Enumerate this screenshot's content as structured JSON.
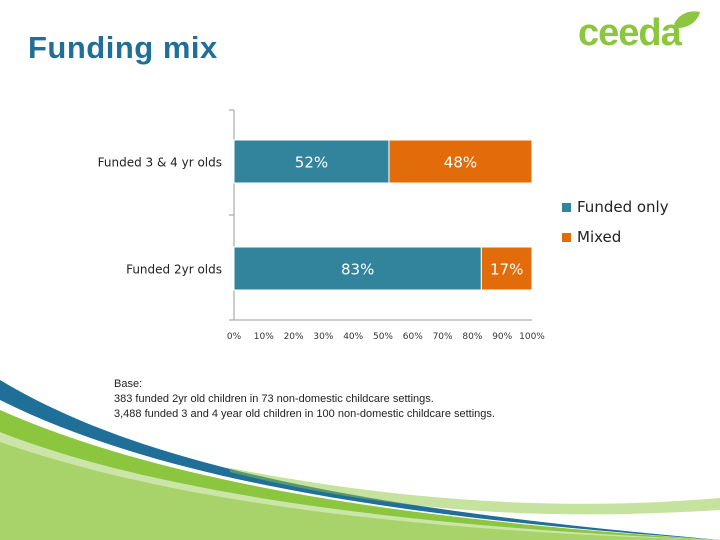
{
  "page": {
    "title": "Funding mix",
    "logo_text": "ceeda",
    "base_note": {
      "heading": "Base:",
      "line1": "383 funded 2yr old children in 73 non-domestic childcare settings.",
      "line2": "3,488 funded 3 and 4 year old children in 100 non-domestic childcare settings."
    }
  },
  "colors": {
    "title": "#1f6f99",
    "funded_only": "#31849b",
    "mixed": "#e36c0a",
    "brand_green": "#8cc63f"
  },
  "chart_data": {
    "type": "bar",
    "orientation": "horizontal",
    "stacked": true,
    "categories": [
      "Funded 3 & 4 yr olds",
      "Funded 2yr olds"
    ],
    "series": [
      {
        "name": "Funded only",
        "values": [
          52,
          83
        ],
        "labels": [
          "52%",
          "83%"
        ],
        "color": "#31849b"
      },
      {
        "name": "Mixed",
        "values": [
          48,
          17
        ],
        "labels": [
          "48%",
          "17%"
        ],
        "color": "#e36c0a"
      }
    ],
    "xlim": [
      0,
      100
    ],
    "xticks": [
      "0%",
      "10%",
      "20%",
      "30%",
      "40%",
      "50%",
      "60%",
      "70%",
      "80%",
      "90%",
      "100%"
    ],
    "legend": "right",
    "grid": false
  }
}
